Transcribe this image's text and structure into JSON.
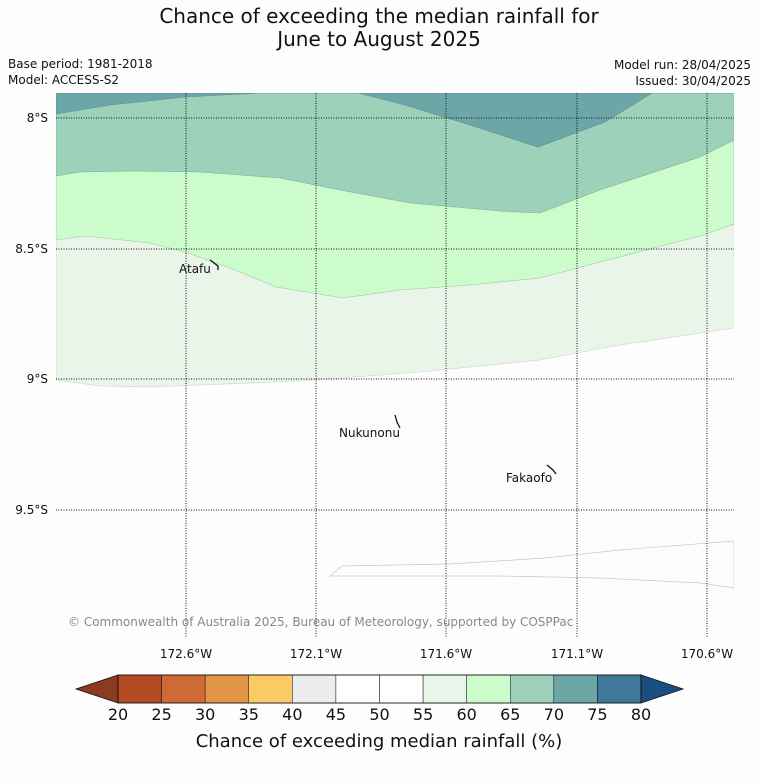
{
  "title_line1": "Chance of exceeding the median rainfall for",
  "title_line2": "June to August 2025",
  "meta_left": {
    "base_period": "Base period: 1981-2018",
    "model": "Model: ACCESS-S2"
  },
  "meta_right": {
    "model_run": "Model run: 28/04/2025",
    "issued": "Issued: 30/04/2025"
  },
  "map": {
    "lat_labels": [
      "8°S",
      "8.5°S",
      "9°S",
      "9.5°S"
    ],
    "lon_labels": [
      "172.6°W",
      "172.1°W",
      "171.6°W",
      "171.1°W",
      "170.6°W"
    ],
    "places": [
      {
        "name": "Atafu"
      },
      {
        "name": "Nukunonu"
      },
      {
        "name": "Fakaofo"
      }
    ],
    "copyright": "© Commonwealth of Australia 2025, Bureau of Meteorology, supported by COSPPac"
  },
  "colorbar": {
    "title": "Chance of exceeding median rainfall (%)",
    "tick_labels": [
      "20",
      "25",
      "30",
      "35",
      "40",
      "45",
      "50",
      "55",
      "60",
      "65",
      "70",
      "75",
      "80"
    ],
    "under_color": "#8c3a20",
    "over_color": "#1a4e82",
    "colors": [
      "#b34a24",
      "#d06a34",
      "#e39548",
      "#fcca64",
      "#ececec",
      "#ffffff",
      "#ffffff",
      "#eaf5ea",
      "#ccfccc",
      "#9dd1ba",
      "#6da6a7",
      "#3f7898"
    ]
  }
}
